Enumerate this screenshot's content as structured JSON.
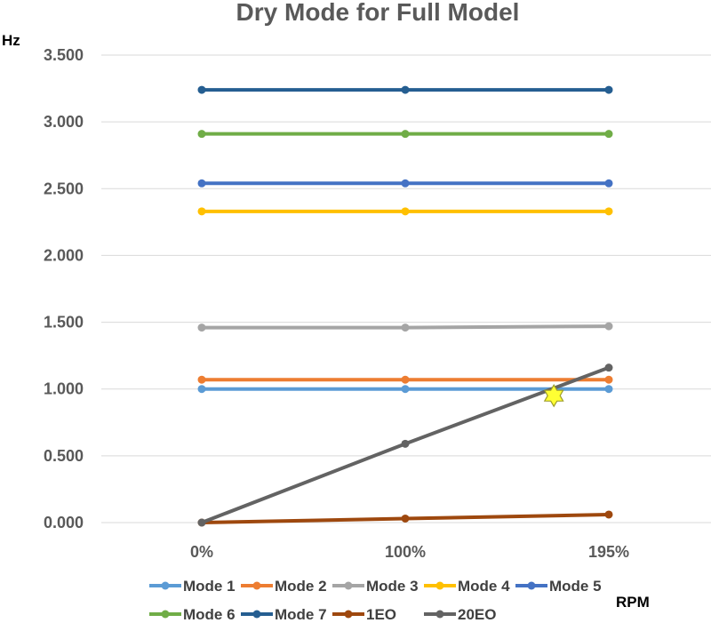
{
  "chart_data": {
    "type": "line",
    "title": "Dry Mode for Full Model",
    "ylabel": "Hz",
    "xlabel": "RPM",
    "categories": [
      "0%",
      "100%",
      "195%"
    ],
    "ylim": [
      0,
      3.5
    ],
    "yticks": [
      "0.000",
      "0.500",
      "1.000",
      "1.500",
      "2.000",
      "2.500",
      "3.000",
      "3.500"
    ],
    "grid": true,
    "legend_position": "bottom",
    "series": [
      {
        "name": "Mode 1",
        "color": "#5B9BD5",
        "values": [
          1.0,
          1.0,
          1.0
        ]
      },
      {
        "name": "Mode 2",
        "color": "#ED7D31",
        "values": [
          1.07,
          1.07,
          1.07
        ]
      },
      {
        "name": "Mode 3",
        "color": "#A5A5A5",
        "values": [
          1.46,
          1.46,
          1.47
        ]
      },
      {
        "name": "Mode 4",
        "color": "#FFC000",
        "values": [
          2.33,
          2.33,
          2.33
        ]
      },
      {
        "name": "Mode 5",
        "color": "#4472C4",
        "values": [
          2.54,
          2.54,
          2.54
        ]
      },
      {
        "name": "Mode 6",
        "color": "#70AD47",
        "values": [
          2.91,
          2.91,
          2.91
        ]
      },
      {
        "name": "Mode 7",
        "color": "#255E91",
        "values": [
          3.24,
          3.24,
          3.24
        ]
      },
      {
        "name": "1EO",
        "color": "#9E480E",
        "values": [
          0.0,
          0.03,
          0.06
        ]
      },
      {
        "name": "20EO",
        "color": "#636363",
        "values": [
          0.0,
          0.59,
          1.16
        ]
      }
    ],
    "annotations": [
      {
        "type": "star-marker",
        "color": "#FFFF33",
        "x_category_index": 1.73,
        "y": 0.95
      }
    ]
  }
}
